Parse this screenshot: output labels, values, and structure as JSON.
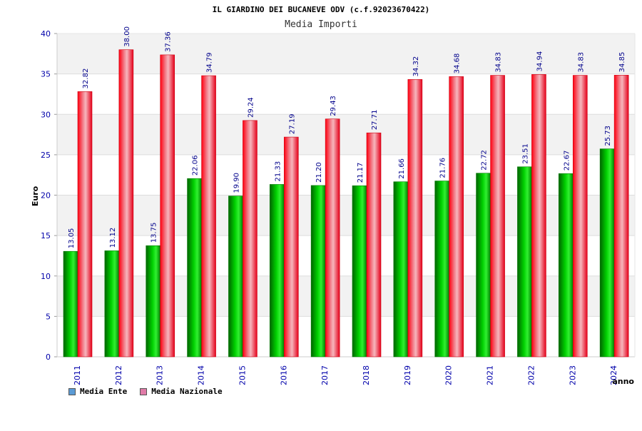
{
  "chart_data": {
    "type": "bar",
    "title": "IL GIARDINO DEI BUCANEVE ODV (c.f.92023670422)",
    "subtitle": "Media Importi",
    "xlabel": "anno",
    "ylabel": "Euro",
    "ylim": [
      0,
      40
    ],
    "yticks": [
      0,
      5,
      10,
      15,
      20,
      25,
      30,
      35,
      40
    ],
    "grid": true,
    "legend_position": "bottom-left",
    "categories": [
      "2011",
      "2012",
      "2013",
      "2014",
      "2015",
      "2016",
      "2017",
      "2018",
      "2019",
      "2020",
      "2021",
      "2022",
      "2023",
      "2024"
    ],
    "series": [
      {
        "name": "Media Ente",
        "color": "#00b000",
        "legend_color": "#5b9bd5",
        "values": [
          13.05,
          13.12,
          13.75,
          22.06,
          19.9,
          21.33,
          21.2,
          21.17,
          21.66,
          21.76,
          22.72,
          23.51,
          22.67,
          25.73
        ],
        "labels": [
          "13.05",
          "13.12",
          "13.75",
          "22.06",
          "19.90",
          "21.33",
          "21.20",
          "21.17",
          "21.66",
          "21.76",
          "22.72",
          "23.51",
          "22.67",
          "25.73"
        ]
      },
      {
        "name": "Media Nazionale",
        "color": "#e8101a",
        "legend_color": "#e07ba8",
        "values": [
          32.82,
          38.0,
          37.36,
          34.79,
          29.24,
          27.19,
          29.43,
          27.71,
          34.32,
          34.68,
          34.83,
          34.94,
          34.83,
          34.85
        ],
        "labels": [
          "32.82",
          "38.00",
          "37.36",
          "34.79",
          "29.24",
          "27.19",
          "29.43",
          "27.71",
          "34.32",
          "34.68",
          "34.83",
          "34.94",
          "34.83",
          "34.85"
        ]
      }
    ]
  }
}
